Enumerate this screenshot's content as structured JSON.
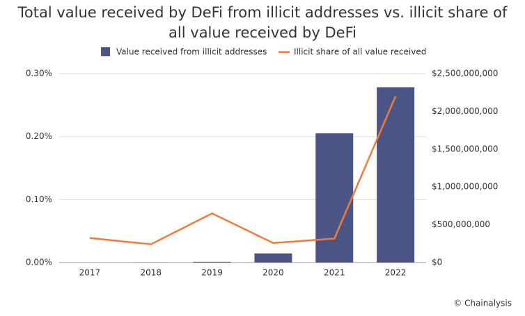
{
  "chart_data": {
    "type": "bar-line",
    "title": "Total value received by DeFi from illicit addresses vs. illicit share of all value received by DeFi",
    "source": "© Chainalysis",
    "categories": [
      "2017",
      "2018",
      "2019",
      "2020",
      "2021",
      "2022"
    ],
    "series": [
      {
        "name": "Value received from illicit addresses",
        "type": "bar",
        "axis": "y2",
        "color": "#4a5585",
        "values": [
          1000000,
          2000000,
          10000000,
          120000000,
          1710000000,
          2320000000
        ]
      },
      {
        "name": "Illicit share of all value received",
        "type": "line",
        "color": "#f27a36",
        "values": [
          0.039,
          0.029,
          0.078,
          0.031,
          0.038,
          0.264
        ]
      }
    ],
    "ylim": [
      0,
      0.3
    ],
    "yticks": [
      {
        "value": 0,
        "label": "0.00%"
      },
      {
        "value": 0.1,
        "label": "0.10%"
      },
      {
        "value": 0.2,
        "label": "0.20%"
      },
      {
        "value": 0.3,
        "label": "0.30%"
      }
    ],
    "y2lim": [
      0,
      2500000000
    ],
    "y2ticks": [
      {
        "value": 0,
        "label": "$0"
      },
      {
        "value": 500000000,
        "label": "$500,000,000"
      },
      {
        "value": 1000000000,
        "label": "$1,000,000,000"
      },
      {
        "value": 1500000000,
        "label": "$1,500,000,000"
      },
      {
        "value": 2000000000,
        "label": "$2,000,000,000"
      },
      {
        "value": 2500000000,
        "label": "$2,500,000,000"
      }
    ],
    "grid": true
  }
}
